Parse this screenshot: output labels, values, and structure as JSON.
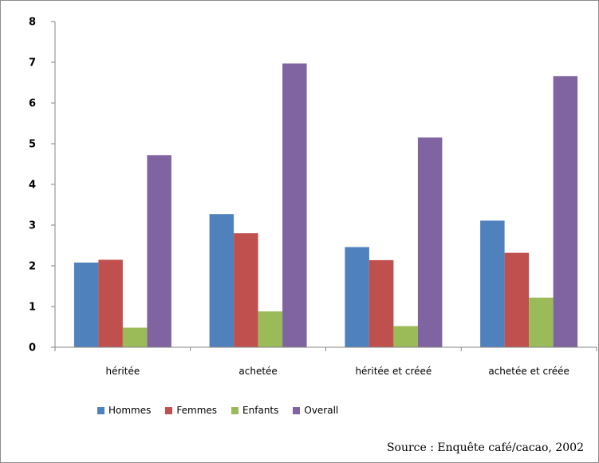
{
  "chart_data": {
    "type": "bar",
    "categories": [
      "héritée",
      "achetée",
      "héritée et créeé",
      "achetée et créée"
    ],
    "series": [
      {
        "name": "Hommes",
        "color": "#4f81bd",
        "values": [
          2.08,
          3.27,
          2.46,
          3.11
        ]
      },
      {
        "name": "Femmes",
        "color": "#c0504d",
        "values": [
          2.15,
          2.8,
          2.14,
          2.32
        ]
      },
      {
        "name": "Enfants",
        "color": "#9bbb59",
        "values": [
          0.48,
          0.88,
          0.52,
          1.22
        ]
      },
      {
        "name": "Overall",
        "color": "#8064a2",
        "values": [
          4.72,
          6.97,
          5.15,
          6.66
        ]
      }
    ],
    "ylim": [
      0,
      8
    ],
    "yticks": [
      "0",
      "1",
      "2",
      "3",
      "4",
      "5",
      "6",
      "7",
      "8"
    ],
    "grid": false,
    "legend_position": "bottom"
  },
  "source_note": "Source : Enquête café/cacao, 2002"
}
